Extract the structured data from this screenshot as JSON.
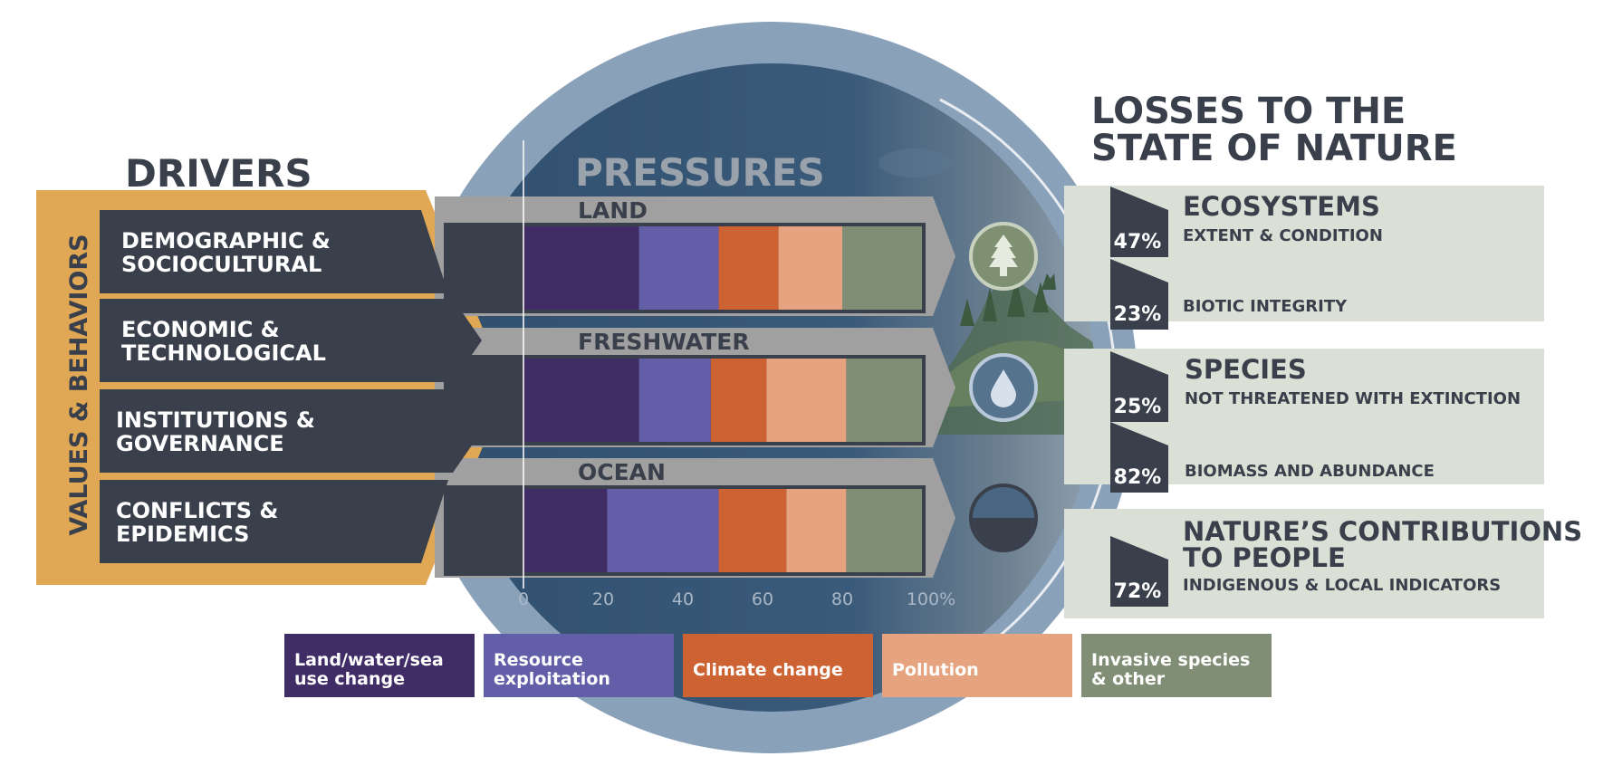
{
  "colors": {
    "land_water_sea": "#412d66",
    "resource": "#625ea8",
    "climate": "#cd6232",
    "pollution": "#e5a47f",
    "invasive": "#808e75",
    "gold": "#e0a755",
    "dark": "#3a404b",
    "panel": "#dbe0d6",
    "circle_outer": "#8aa1ba",
    "circle_inner": "#355472",
    "band": "#a0a0a0"
  },
  "drivers": {
    "title": "DRIVERS",
    "side_label": "VALUES & BEHAVIORS",
    "items": [
      {
        "line1": "DEMOGRAPHIC &",
        "line2": "SOCIOCULTURAL"
      },
      {
        "line1": "ECONOMIC &",
        "line2": "TECHNOLOGICAL"
      },
      {
        "line1": "INSTITUTIONS &",
        "line2": "GOVERNANCE"
      },
      {
        "line1": "CONFLICTS &",
        "line2": "EPIDEMICS"
      }
    ]
  },
  "pressures": {
    "title": "PRESSURES",
    "rows": [
      {
        "label": "LAND",
        "icon": "tree-icon",
        "segments": [
          29,
          20,
          15,
          16,
          20
        ]
      },
      {
        "label": "FRESHWATER",
        "icon": "water-drop-icon",
        "segments": [
          29,
          18,
          14,
          20,
          19
        ]
      },
      {
        "label": "OCEAN",
        "icon": "ocean-icon",
        "segments": [
          21,
          28,
          17,
          15,
          19
        ]
      }
    ],
    "axis_ticks": [
      "0",
      "20",
      "40",
      "60",
      "80",
      "100%"
    ]
  },
  "losses": {
    "title_line1": "LOSSES TO THE",
    "title_line2": "STATE OF NATURE",
    "groups": [
      {
        "title_line1": "ECOSYSTEMS",
        "title_line2": "",
        "items": [
          {
            "pct": "47%",
            "label": "EXTENT & CONDITION"
          },
          {
            "pct": "23%",
            "label": "BIOTIC INTEGRITY"
          }
        ]
      },
      {
        "title_line1": "SPECIES",
        "title_line2": "",
        "items": [
          {
            "pct": "25%",
            "label": "NOT THREATENED WITH EXTINCTION"
          },
          {
            "pct": "82%",
            "label": "BIOMASS AND ABUNDANCE"
          }
        ]
      },
      {
        "title_line1": "NATURE’S CONTRIBUTIONS",
        "title_line2": "TO PEOPLE",
        "items": [
          {
            "pct": "72%",
            "label": "INDIGENOUS & LOCAL INDICATORS"
          }
        ]
      }
    ]
  },
  "legend": [
    {
      "key": "land_water_sea",
      "label": "Land/water/sea\nuse change"
    },
    {
      "key": "resource",
      "label": "Resource\nexploitation"
    },
    {
      "key": "climate",
      "label": "Climate change"
    },
    {
      "key": "pollution",
      "label": "Pollution"
    },
    {
      "key": "invasive",
      "label": "Invasive species\n& other"
    }
  ]
}
